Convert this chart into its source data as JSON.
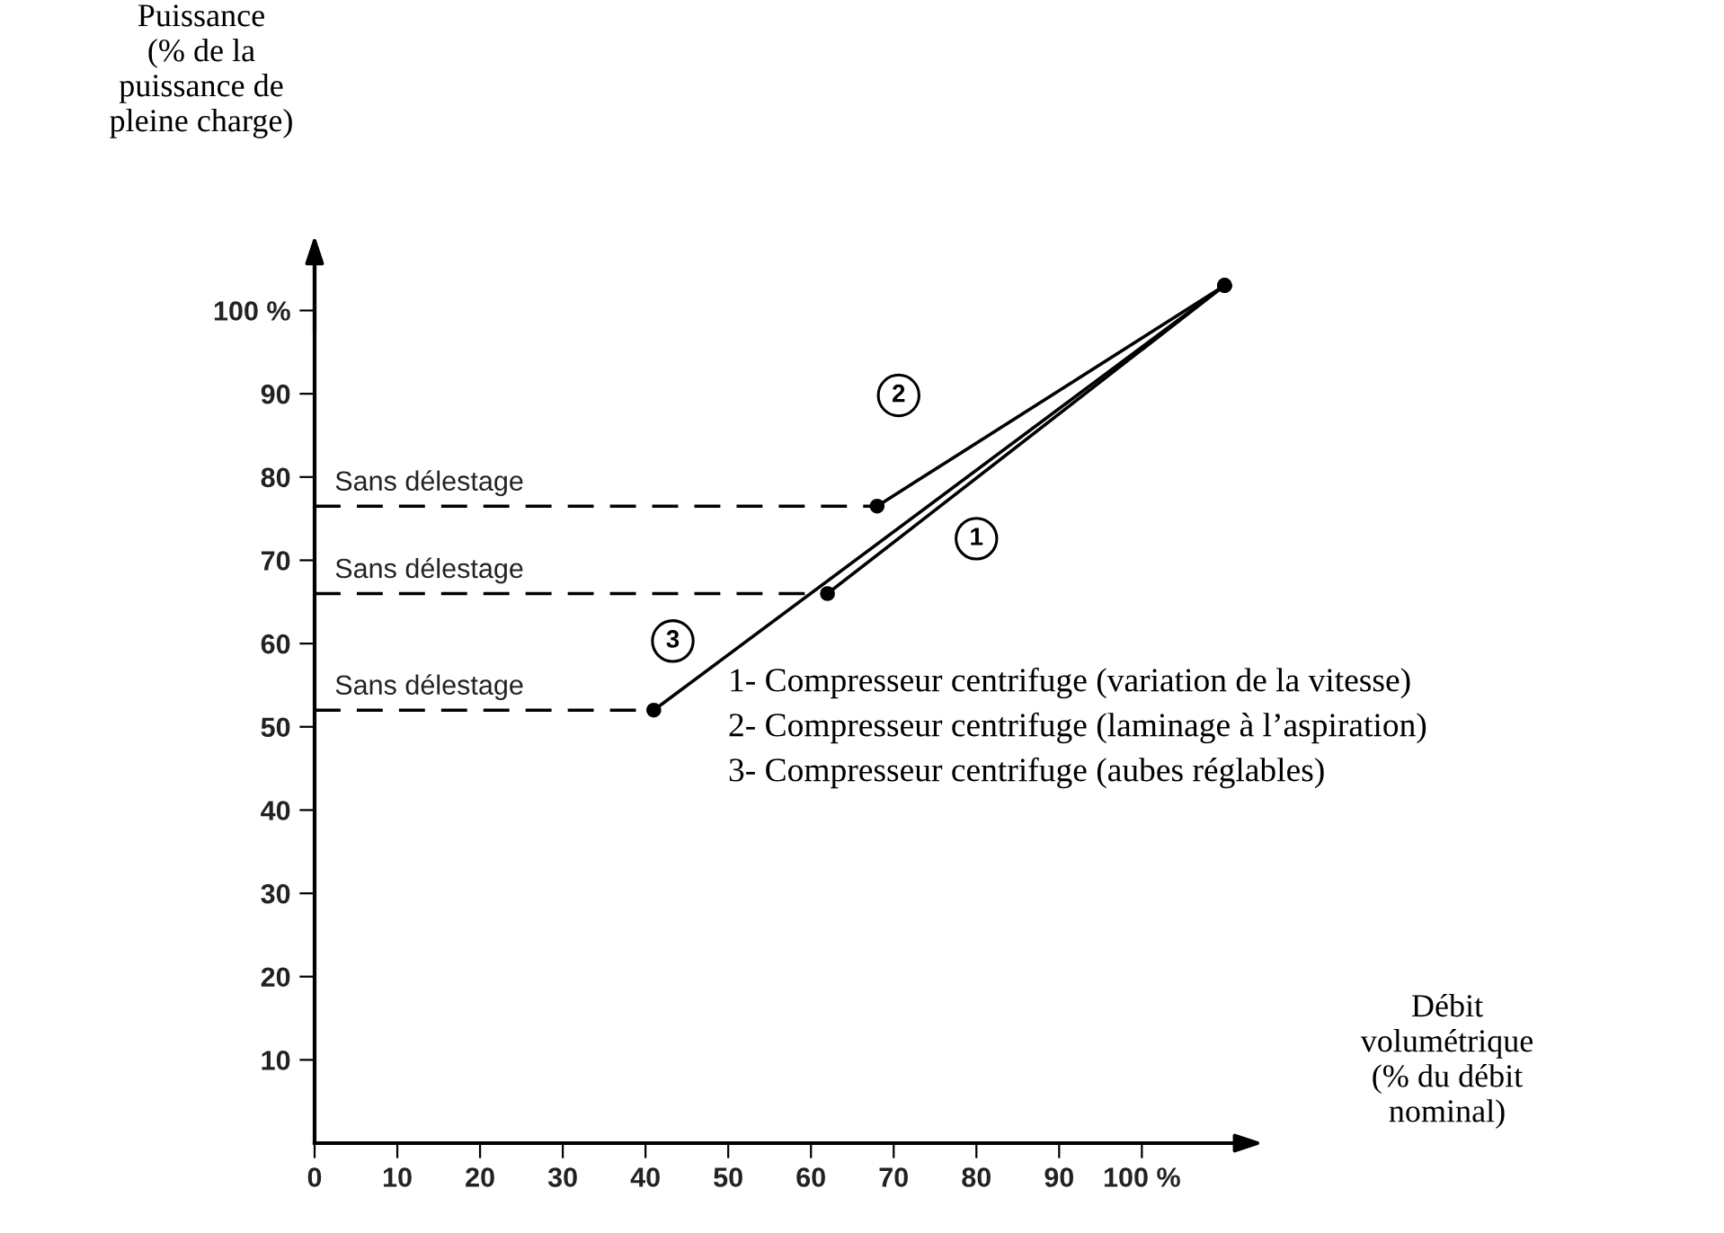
{
  "chart_data": {
    "type": "line",
    "ylabel": "Puissance\n(% de la\npuissance de\npleine charge)",
    "xlabel": "Débit\nvolumétrique\n(% du débit\nnominal)",
    "xlim": [
      0,
      113
    ],
    "ylim": [
      0,
      107.5
    ],
    "xticks": [
      0,
      10,
      20,
      30,
      40,
      50,
      60,
      70,
      80,
      90,
      {
        "value": 100,
        "label": "100 %"
      }
    ],
    "yticks": [
      10,
      20,
      30,
      40,
      50,
      60,
      70,
      80,
      90,
      {
        "value": 100,
        "label": "100 %"
      }
    ],
    "grid": false,
    "marker": "circle",
    "line_style": "solid",
    "series": [
      {
        "color": "#000000",
        "x": [
          62,
          110
        ],
        "values": [
          66,
          103
        ]
      },
      {
        "color": "#000000",
        "x": [
          68,
          110
        ],
        "values": [
          76.5,
          103
        ]
      },
      {
        "color": "#000000",
        "x": [
          41,
          110
        ],
        "values": [
          52,
          103
        ]
      },
      {
        "color": "#000000",
        "x": [
          0,
          62
        ],
        "values": [
          66,
          66
        ],
        "line_style": "dashed",
        "marker": "none"
      },
      {
        "color": "#000000",
        "x": [
          0,
          68
        ],
        "values": [
          76.5,
          76.5
        ],
        "line_style": "dashed",
        "marker": "none"
      },
      {
        "color": "#000000",
        "x": [
          0,
          41
        ],
        "values": [
          52,
          52
        ],
        "line_style": "dashed",
        "marker": "none"
      }
    ],
    "annotations": [
      {
        "text": "Sans délestage",
        "x": 0,
        "y": 76.5
      },
      {
        "text": "Sans délestage",
        "x": 0,
        "y": 66
      },
      {
        "text": "Sans délestage",
        "x": 0,
        "y": 52
      },
      {
        "text": "1",
        "x": 80,
        "y": 72.6
      },
      {
        "text": "2",
        "x": 70.6,
        "y": 89.8
      },
      {
        "text": "3",
        "x": 43.3,
        "y": 60.3
      },
      "1- Compresseur centrifuge (variation de la vitesse)",
      "2- Compresseur centrifuge (laminage à l’aspiration)",
      "3- Compresseur centrifuge (aubes réglables)"
    ]
  }
}
